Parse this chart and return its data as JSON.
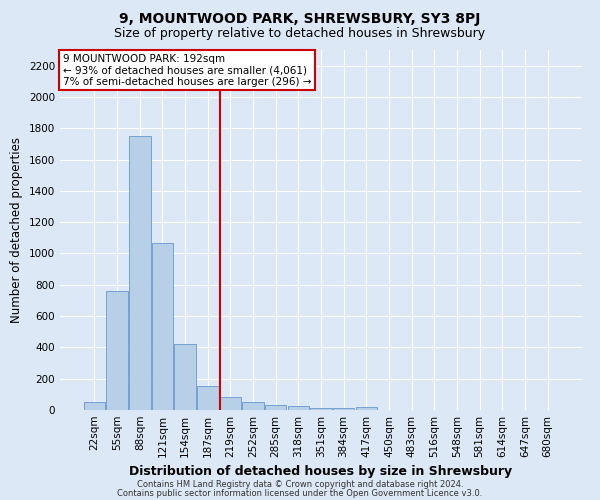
{
  "title": "9, MOUNTWOOD PARK, SHREWSBURY, SY3 8PJ",
  "subtitle": "Size of property relative to detached houses in Shrewsbury",
  "xlabel": "Distribution of detached houses by size in Shrewsbury",
  "ylabel": "Number of detached properties",
  "footnote1": "Contains HM Land Registry data © Crown copyright and database right 2024.",
  "footnote2": "Contains public sector information licensed under the Open Government Licence v3.0.",
  "bar_labels": [
    "22sqm",
    "55sqm",
    "88sqm",
    "121sqm",
    "154sqm",
    "187sqm",
    "219sqm",
    "252sqm",
    "285sqm",
    "318sqm",
    "351sqm",
    "384sqm",
    "417sqm",
    "450sqm",
    "483sqm",
    "516sqm",
    "548sqm",
    "581sqm",
    "614sqm",
    "647sqm",
    "680sqm"
  ],
  "bar_values": [
    50,
    760,
    1750,
    1070,
    420,
    155,
    80,
    50,
    35,
    25,
    15,
    10,
    20,
    0,
    0,
    0,
    0,
    0,
    0,
    0,
    0
  ],
  "bar_color": "#b8cfe8",
  "bar_edge_color": "#6699cc",
  "ylim": [
    0,
    2300
  ],
  "yticks": [
    0,
    200,
    400,
    600,
    800,
    1000,
    1200,
    1400,
    1600,
    1800,
    2000,
    2200
  ],
  "vline_x": 5.52,
  "vline_color": "#cc0000",
  "annotation_text": "9 MOUNTWOOD PARK: 192sqm\n← 93% of detached houses are smaller (4,061)\n7% of semi-detached houses are larger (296) →",
  "annotation_box_color": "#ffffff",
  "annotation_box_edge": "#cc0000",
  "background_color": "#dce8f5",
  "plot_bg_color": "#dce8f5",
  "grid_color": "#ffffff",
  "title_fontsize": 10,
  "subtitle_fontsize": 9,
  "axis_label_fontsize": 8.5,
  "tick_fontsize": 7.5,
  "annotation_fontsize": 7.5,
  "footnote_fontsize": 6
}
